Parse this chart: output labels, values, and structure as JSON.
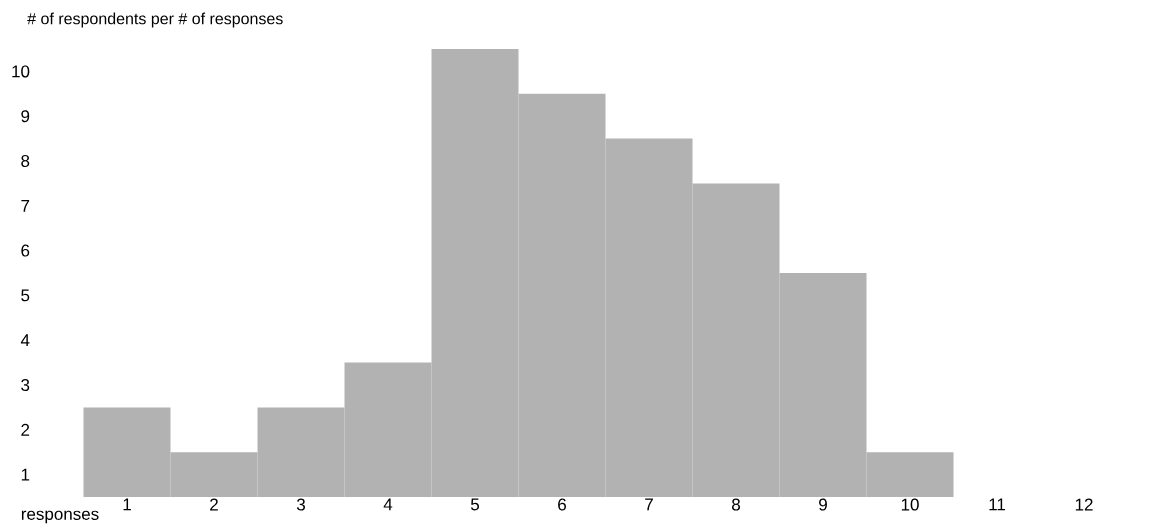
{
  "chart_data": {
    "type": "bar",
    "title": "# of respondents per # of responses",
    "xlabel": "responses",
    "categories": [
      "1",
      "2",
      "3",
      "4",
      "5",
      "6",
      "7",
      "8",
      "9",
      "10",
      "11",
      "12"
    ],
    "values": [
      2,
      1,
      2,
      3,
      10,
      9,
      8,
      7,
      5,
      1,
      0,
      0
    ],
    "color": "#b2b2b2",
    "ylim": [
      0,
      10
    ],
    "yticks": [
      {
        "value": 0.5,
        "label": "1"
      },
      {
        "value": 1.5,
        "label": "2"
      },
      {
        "value": 2.5,
        "label": "3"
      },
      {
        "value": 3.5,
        "label": "4"
      },
      {
        "value": 4.5,
        "label": "5"
      },
      {
        "value": 5.5,
        "label": "6"
      },
      {
        "value": 6.5,
        "label": "7"
      },
      {
        "value": 7.5,
        "label": "8"
      },
      {
        "value": 8.5,
        "label": "9"
      },
      {
        "value": 9.5,
        "label": "10"
      }
    ],
    "grid": false
  }
}
